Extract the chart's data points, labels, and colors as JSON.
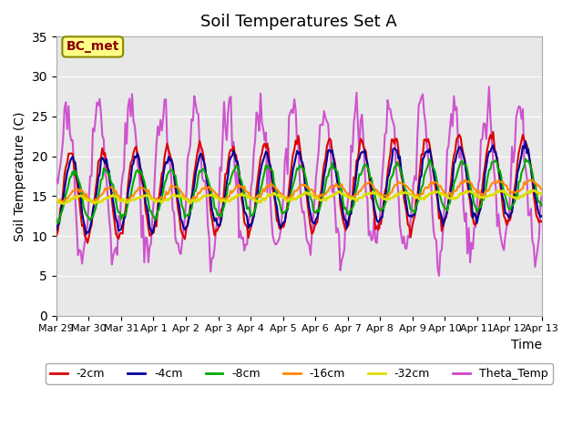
{
  "title": "Soil Temperatures Set A",
  "xlabel": "Time",
  "ylabel": "Soil Temperature (C)",
  "ylim": [
    0,
    35
  ],
  "yticks": [
    0,
    5,
    10,
    15,
    20,
    25,
    30,
    35
  ],
  "annotation": "BC_met",
  "background_color": "#e8e8e8",
  "series": {
    "-2cm": {
      "color": "#dd0000",
      "lw": 1.5
    },
    "-4cm": {
      "color": "#000099",
      "lw": 1.5
    },
    "-8cm": {
      "color": "#00aa00",
      "lw": 1.5
    },
    "-16cm": {
      "color": "#ff8800",
      "lw": 1.5
    },
    "-32cm": {
      "color": "#dddd00",
      "lw": 2.0
    },
    "Theta_Temp": {
      "color": "#cc44cc",
      "lw": 1.5
    }
  },
  "date_labels": [
    "Mar 29",
    "Mar 30",
    "Mar 31",
    "Apr 1",
    "Apr 2",
    "Apr 3",
    "Apr 4",
    "Apr 5",
    "Apr 6",
    "Apr 7",
    "Apr 8",
    "Apr 9",
    "Apr 10",
    "Apr 11",
    "Apr 12",
    "Apr 13"
  ],
  "num_points": 360,
  "days": 15
}
